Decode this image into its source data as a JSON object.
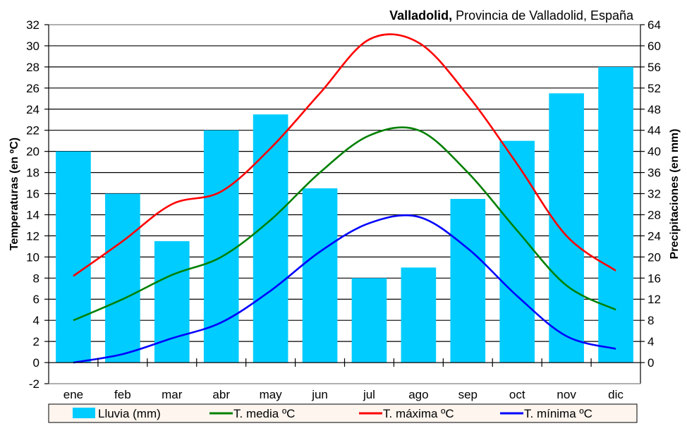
{
  "chart_data": {
    "type": "bar",
    "title_bold": "Valladolid,",
    "title_rest": " Provincia de Valladolid, España",
    "categories": [
      "ene",
      "feb",
      "mar",
      "abr",
      "may",
      "jun",
      "jul",
      "ago",
      "sep",
      "oct",
      "nov",
      "dic"
    ],
    "ylabel": "Temperaturas (en ºC)",
    "y2label": "Precipitaciones (en mm)",
    "ylim": [
      -2,
      32
    ],
    "y2lim": [
      -4,
      64
    ],
    "yticks": [
      -2,
      0,
      2,
      4,
      6,
      8,
      10,
      12,
      14,
      16,
      18,
      20,
      22,
      24,
      26,
      28,
      30,
      32
    ],
    "y2ticks": [
      0,
      4,
      8,
      12,
      16,
      20,
      24,
      28,
      32,
      36,
      40,
      44,
      48,
      52,
      56,
      60,
      64
    ],
    "grid": true,
    "legend_position": "bottom",
    "series": [
      {
        "name": "Lluvia (mm)",
        "kind": "bar",
        "axis": "right",
        "color": "#00CCFF",
        "values": [
          40,
          32,
          23,
          44,
          47,
          33,
          16,
          18,
          31,
          42,
          51,
          56
        ]
      },
      {
        "name": "T. media ºC",
        "kind": "line",
        "axis": "left",
        "color": "#008000",
        "values": [
          4,
          6,
          8.3,
          10,
          13.5,
          18,
          21.5,
          22,
          18,
          12.5,
          7.3,
          5
        ]
      },
      {
        "name": "T. máxima ºC",
        "kind": "line",
        "axis": "left",
        "color": "#FF0000",
        "values": [
          8.2,
          11.5,
          15,
          16.2,
          20.3,
          25.5,
          30.6,
          30.3,
          25.3,
          18.8,
          12,
          8.7
        ]
      },
      {
        "name": "T. mínima ºC",
        "kind": "line",
        "axis": "left",
        "color": "#0000FF",
        "values": [
          0,
          0.8,
          2.3,
          3.8,
          6.8,
          10.5,
          13.2,
          13.8,
          10.8,
          6.3,
          2.5,
          1.3
        ]
      }
    ]
  }
}
